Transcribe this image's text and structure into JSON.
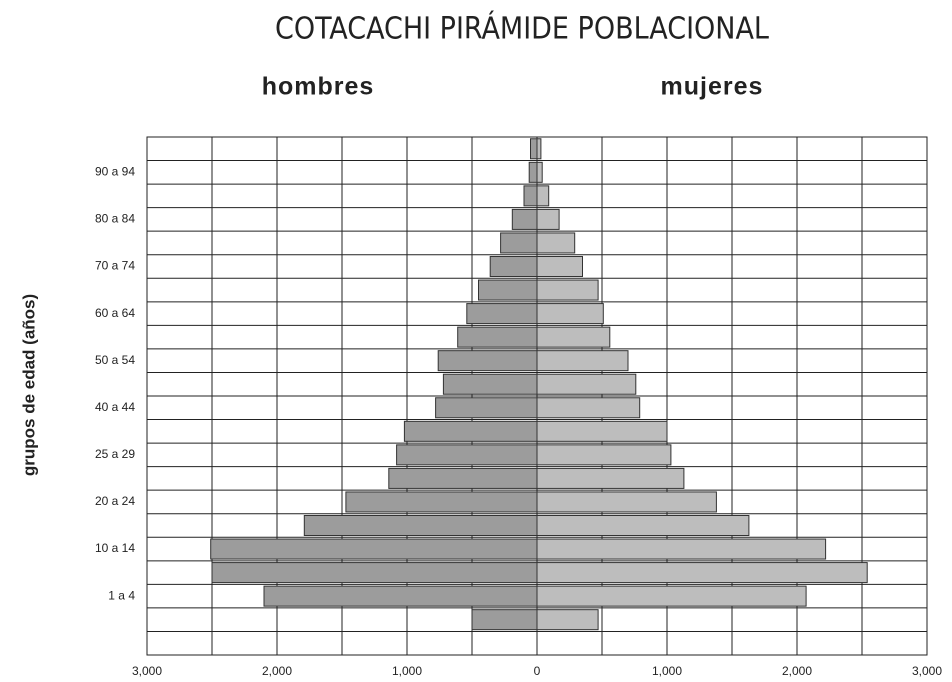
{
  "chart_data": {
    "type": "pyramid",
    "title": "COTACACHI PIRÁMIDE POBLACIONAL",
    "y_axis_label": "grupos de edad (años)",
    "categories": [
      null,
      "1 a 4",
      null,
      "10 a 14",
      null,
      "20 a 24",
      null,
      "25 a 29",
      null,
      "40 a 44",
      null,
      "50 a 54",
      null,
      "60 a 64",
      null,
      "70 a 74",
      null,
      "80 a 84",
      null,
      "90 a 94",
      null
    ],
    "series": [
      {
        "name": "hombres",
        "color": "#9c9c9c",
        "side": "left",
        "values": [
          500,
          2100,
          2500,
          2510,
          1790,
          1470,
          1140,
          1080,
          1020,
          780,
          720,
          760,
          610,
          540,
          450,
          360,
          280,
          190,
          100,
          60,
          50
        ]
      },
      {
        "name": "mujeres",
        "color": "#bdbdbd",
        "side": "right",
        "values": [
          470,
          2070,
          2540,
          2220,
          1630,
          1380,
          1130,
          1030,
          1000,
          790,
          760,
          700,
          560,
          510,
          470,
          350,
          290,
          170,
          90,
          40,
          30
        ]
      }
    ],
    "xlim": [
      -3000,
      3000
    ],
    "xticks": [
      {
        "value": -3000,
        "label": "3,000"
      },
      {
        "value": -2000,
        "label": "2,000"
      },
      {
        "value": -1000,
        "label": "1,000"
      },
      0,
      {
        "value": 1000,
        "label": "1,000"
      },
      {
        "value": 2000,
        "label": "2,000"
      },
      {
        "value": 3000,
        "label": "3,000"
      }
    ],
    "xgrid_minor": [
      -2500,
      -1500,
      -500,
      500,
      1500,
      2500
    ],
    "grid": true
  }
}
